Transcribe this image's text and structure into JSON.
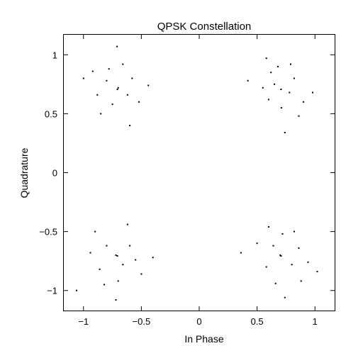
{
  "chart_data": {
    "type": "scatter",
    "title": "QPSK Constellation",
    "xlabel": "In Phase",
    "ylabel": "Quadrature",
    "xlim": [
      -1.17,
      1.17
    ],
    "ylim": [
      -1.17,
      1.17
    ],
    "xticks": [
      -1,
      -0.5,
      0,
      0.5,
      1
    ],
    "yticks": [
      -1,
      -0.5,
      0,
      0.5,
      1
    ],
    "xtick_labels": [
      "−1",
      "−0.5",
      "0",
      "0.5",
      "1"
    ],
    "ytick_labels": [
      "−1",
      "−0.5",
      "0",
      "0.5",
      "1"
    ],
    "grid": false,
    "legend": "none",
    "marker_color": "#000000",
    "series": [
      {
        "points": [
          [
            0.707,
            0.707
          ],
          [
            -0.707,
            0.707
          ],
          [
            -0.707,
            -0.707
          ],
          [
            0.707,
            -0.707
          ],
          [
            0.65,
            0.75
          ],
          [
            0.78,
            0.68
          ],
          [
            0.6,
            0.62
          ],
          [
            0.82,
            0.8
          ],
          [
            0.71,
            0.55
          ],
          [
            0.55,
            0.72
          ],
          [
            0.9,
            0.6
          ],
          [
            0.68,
            0.9
          ],
          [
            0.42,
            0.78
          ],
          [
            0.98,
            0.68
          ],
          [
            0.74,
            0.34
          ],
          [
            0.58,
            0.97
          ],
          [
            0.86,
            0.48
          ],
          [
            0.62,
            0.85
          ],
          [
            0.79,
            0.92
          ],
          [
            -0.7,
            0.72
          ],
          [
            -0.62,
            0.66
          ],
          [
            -0.8,
            0.78
          ],
          [
            -0.75,
            0.58
          ],
          [
            -0.58,
            0.8
          ],
          [
            -0.88,
            0.66
          ],
          [
            -0.66,
            0.92
          ],
          [
            -0.52,
            0.6
          ],
          [
            -1.0,
            0.8
          ],
          [
            -0.71,
            1.07
          ],
          [
            -0.44,
            0.74
          ],
          [
            -0.85,
            0.5
          ],
          [
            -0.6,
            0.4
          ],
          [
            -0.92,
            0.86
          ],
          [
            -0.78,
            0.88
          ],
          [
            -0.72,
            -0.7
          ],
          [
            -0.66,
            -0.78
          ],
          [
            -0.8,
            -0.62
          ],
          [
            -0.6,
            -0.62
          ],
          [
            -0.86,
            -0.82
          ],
          [
            -0.7,
            -0.92
          ],
          [
            -0.55,
            -0.74
          ],
          [
            -0.94,
            -0.68
          ],
          [
            -1.06,
            -1.0
          ],
          [
            -0.72,
            -1.08
          ],
          [
            -0.4,
            -0.72
          ],
          [
            -0.9,
            -0.5
          ],
          [
            -0.62,
            -0.44
          ],
          [
            -0.82,
            -0.95
          ],
          [
            -0.5,
            -0.86
          ],
          [
            0.7,
            -0.7
          ],
          [
            0.64,
            -0.62
          ],
          [
            0.8,
            -0.78
          ],
          [
            0.58,
            -0.8
          ],
          [
            0.86,
            -0.64
          ],
          [
            0.72,
            -0.52
          ],
          [
            0.66,
            -0.94
          ],
          [
            0.94,
            -0.76
          ],
          [
            0.36,
            -0.68
          ],
          [
            1.02,
            -0.84
          ],
          [
            0.74,
            -1.06
          ],
          [
            0.5,
            -0.6
          ],
          [
            0.88,
            -0.92
          ],
          [
            0.6,
            -0.46
          ],
          [
            0.82,
            -0.5
          ]
        ]
      }
    ]
  }
}
